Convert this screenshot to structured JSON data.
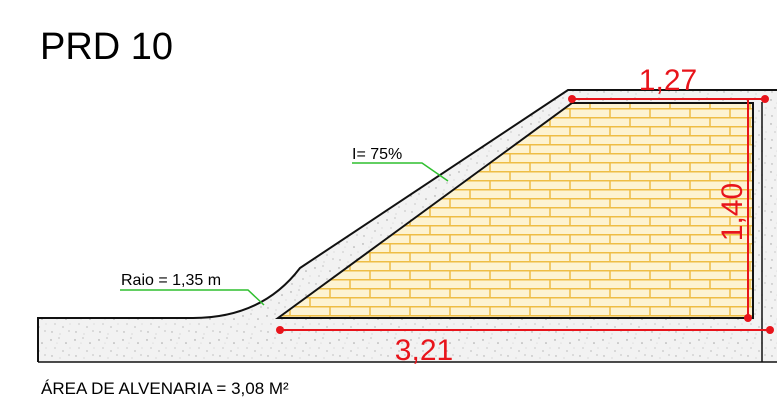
{
  "title": "PRD 10",
  "annotations": {
    "slope": "I= 75%",
    "radius": "Raio = 1,35 m"
  },
  "dimensions": {
    "top_width": "1,27",
    "height": "1,40",
    "base_width": "3,21"
  },
  "footer": "ÁREA DE ALVENARIA = 3,08 M²",
  "colors": {
    "brick_fill": "#fdf3d2",
    "mortar_lines": "#eebd45",
    "dimension": "#e8141b",
    "leader": "#2fbf2f",
    "concrete": "#f2f2f2"
  }
}
